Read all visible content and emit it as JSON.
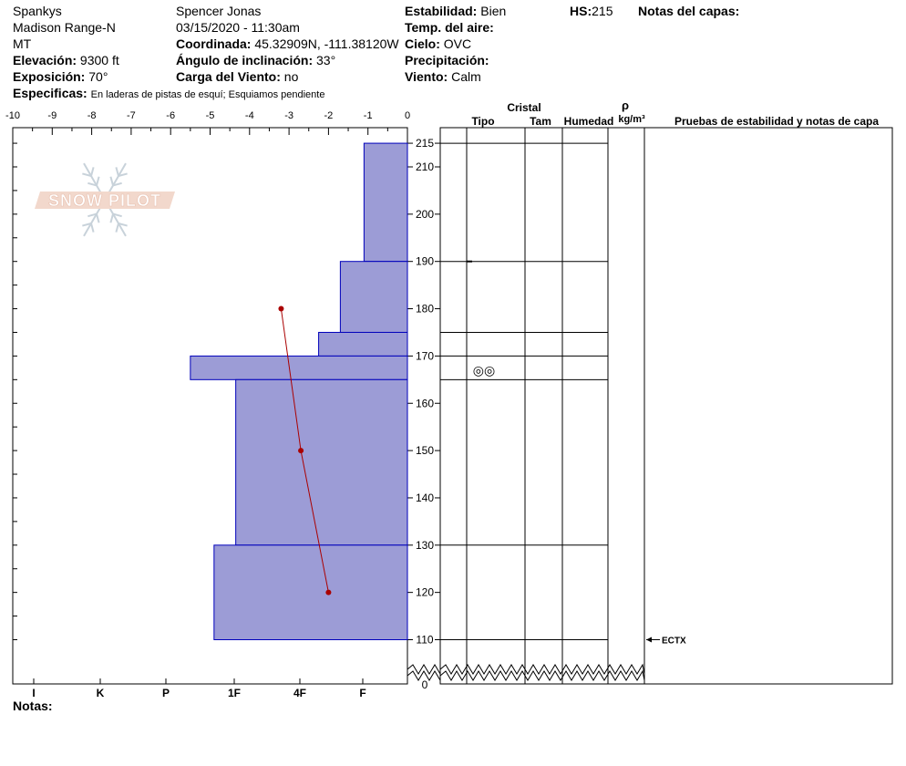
{
  "header": {
    "col1": [
      "Spankys",
      "Madison Range-N",
      "MT"
    ],
    "elevation_label": "Elevación:",
    "elevation_value": "9300 ft",
    "exposure_label": "Exposición:",
    "exposure_value": "70°",
    "specifics_label": "Especificas:",
    "specifics_value": "En laderas de pistas de esquí; Esquiamos pendiente",
    "observer": "Spencer Jonas",
    "datetime": "03/15/2020 - 11:30am",
    "coord_label": "Coordinada:",
    "coord_value": "45.32909N, -111.38120W",
    "slope_label": "Ángulo de inclinación:",
    "slope_value": "33°",
    "wind_load_label": "Carga del Viento:",
    "wind_load_value": "no",
    "stability_label": "Estabilidad:",
    "stability_value": "Bien",
    "air_temp_label": "Temp. del aire:",
    "sky_label": "Cielo:",
    "sky_value": "OVC",
    "precip_label": "Precipitación:",
    "wind_label": "Viento:",
    "wind_value": "Calm",
    "hs_label": "HS:",
    "hs_value": "215",
    "layer_notes_label": "Notas del capas:",
    "notes_label": "Notas:"
  },
  "logo_text": "SNOW PILOT",
  "colors": {
    "layer_fill": "#9c9cd6",
    "layer_stroke": "#0000bb",
    "temp_line": "#aa0000"
  },
  "chart_data": {
    "type": "snow_profile",
    "temp_axis": {
      "ticks": [
        "-10",
        "-9",
        "-8",
        "-7",
        "-6",
        "-5",
        "-4",
        "-3",
        "-2",
        "-1",
        "0"
      ],
      "range": [
        -10,
        0
      ]
    },
    "hardness_axis": {
      "ticks": [
        "I",
        "K",
        "P",
        "1F",
        "4F",
        "F"
      ]
    },
    "depth_axis": {
      "ticks": [
        "215",
        "210",
        "200",
        "190",
        "180",
        "170",
        "160",
        "150",
        "140",
        "130",
        "120",
        "110",
        "0"
      ]
    },
    "layers": [
      {
        "top": 215,
        "bottom": 190,
        "temp_extent": -1.1
      },
      {
        "top": 190,
        "bottom": 175,
        "temp_extent": -1.7
      },
      {
        "top": 175,
        "bottom": 170,
        "temp_extent": -2.25
      },
      {
        "top": 170,
        "bottom": 165,
        "temp_extent": -5.5
      },
      {
        "top": 165,
        "bottom": 130,
        "temp_extent": -4.35
      },
      {
        "top": 130,
        "bottom": 110,
        "temp_extent": -4.9
      }
    ],
    "temperature_profile": [
      {
        "depth": 180,
        "temp": -3.2
      },
      {
        "depth": 150,
        "temp": -2.7
      },
      {
        "depth": 120,
        "temp": -2.0
      }
    ],
    "crystal_table": {
      "group_header": "Cristal",
      "columns": [
        "Tipo",
        "Tam",
        "Humedad"
      ],
      "density_symbol": "ρ",
      "density_unit": "kg/m³",
      "tests_header": "Pruebas de estabilidad y notas de capa",
      "boundaries": [
        215,
        190,
        175,
        170,
        165,
        130,
        110
      ],
      "crystal_symbols": [
        {
          "depth": 167,
          "symbol": "◎◎"
        }
      ]
    },
    "stability_tests": [
      {
        "depth": 110,
        "label": "ECTX"
      }
    ]
  }
}
